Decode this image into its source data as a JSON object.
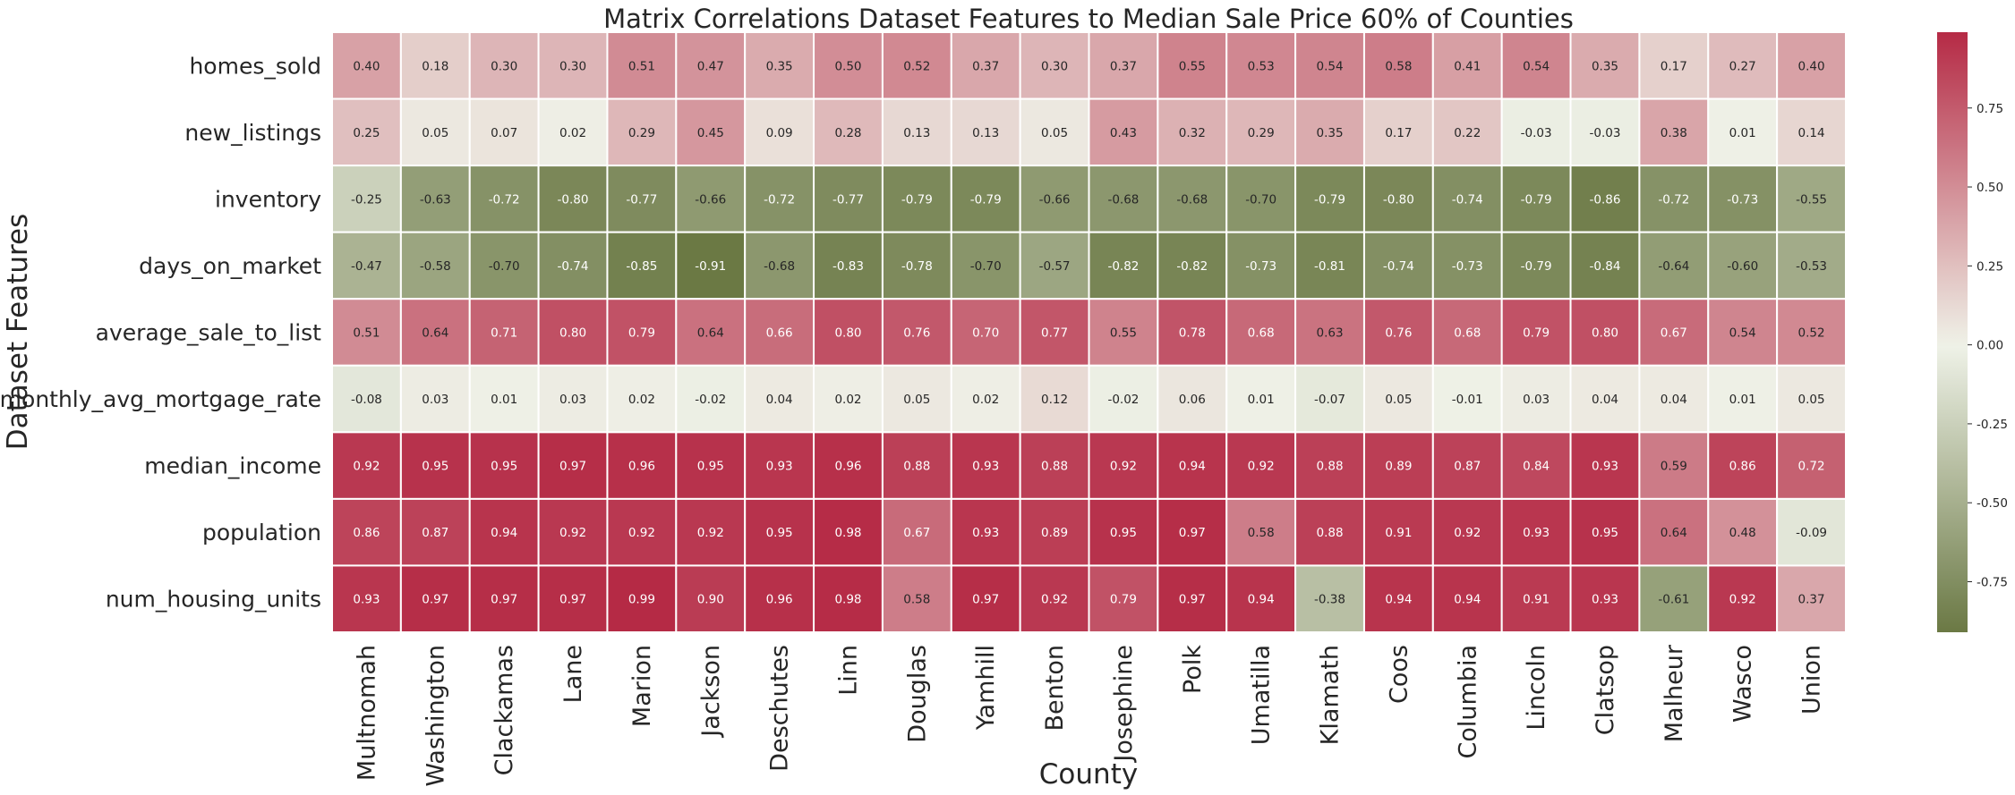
{
  "chart_data": {
    "type": "heatmap",
    "title": "Matrix Correlations Dataset Features to Median Sale Price 60% of Counties",
    "xlabel": "County",
    "ylabel": "Dataset Features",
    "columns": [
      "Multnomah",
      "Washington",
      "Clackamas",
      "Lane",
      "Marion",
      "Jackson",
      "Deschutes",
      "Linn",
      "Douglas",
      "Yamhill",
      "Benton",
      "Josephine",
      "Polk",
      "Umatilla",
      "Klamath",
      "Coos",
      "Columbia",
      "Lincoln",
      "Clatsop",
      "Malheur",
      "Wasco",
      "Union"
    ],
    "rows": [
      "homes_sold",
      "new_listings",
      "inventory",
      "days_on_market",
      "average_sale_to_list",
      "monthly_avg_mortgage_rate",
      "median_income",
      "population",
      "num_housing_units"
    ],
    "values": [
      [
        0.4,
        0.18,
        0.3,
        0.3,
        0.51,
        0.47,
        0.35,
        0.5,
        0.52,
        0.37,
        0.3,
        0.37,
        0.55,
        0.53,
        0.54,
        0.58,
        0.41,
        0.54,
        0.35,
        0.17,
        0.27,
        0.4
      ],
      [
        0.25,
        0.05,
        0.07,
        0.02,
        0.29,
        0.45,
        0.09,
        0.28,
        0.13,
        0.13,
        0.05,
        0.43,
        0.32,
        0.29,
        0.35,
        0.17,
        0.22,
        -0.03,
        -0.03,
        0.38,
        0.01,
        0.14
      ],
      [
        -0.25,
        -0.63,
        -0.72,
        -0.8,
        -0.77,
        -0.66,
        -0.72,
        -0.77,
        -0.79,
        -0.79,
        -0.66,
        -0.68,
        -0.68,
        -0.7,
        -0.79,
        -0.8,
        -0.74,
        -0.79,
        -0.86,
        -0.72,
        -0.73,
        -0.55
      ],
      [
        -0.47,
        -0.58,
        -0.7,
        -0.74,
        -0.85,
        -0.91,
        -0.68,
        -0.83,
        -0.78,
        -0.7,
        -0.57,
        -0.82,
        -0.82,
        -0.73,
        -0.81,
        -0.74,
        -0.73,
        -0.79,
        -0.84,
        -0.64,
        -0.6,
        -0.53
      ],
      [
        0.51,
        0.64,
        0.71,
        0.8,
        0.79,
        0.64,
        0.66,
        0.8,
        0.76,
        0.7,
        0.77,
        0.55,
        0.78,
        0.68,
        0.63,
        0.76,
        0.68,
        0.79,
        0.8,
        0.67,
        0.54,
        0.52
      ],
      [
        -0.08,
        0.03,
        0.01,
        0.03,
        0.02,
        -0.02,
        0.04,
        0.02,
        0.05,
        0.02,
        0.12,
        -0.02,
        0.06,
        0.01,
        -0.07,
        0.05,
        -0.01,
        0.03,
        0.04,
        0.04,
        0.01,
        0.05
      ],
      [
        0.92,
        0.95,
        0.95,
        0.97,
        0.96,
        0.95,
        0.93,
        0.96,
        0.88,
        0.93,
        0.88,
        0.92,
        0.94,
        0.92,
        0.88,
        0.89,
        0.87,
        0.84,
        0.93,
        0.59,
        0.86,
        0.72
      ],
      [
        0.86,
        0.87,
        0.94,
        0.92,
        0.92,
        0.92,
        0.95,
        0.98,
        0.67,
        0.93,
        0.89,
        0.95,
        0.97,
        0.58,
        0.88,
        0.91,
        0.92,
        0.93,
        0.95,
        0.64,
        0.48,
        -0.09
      ],
      [
        0.93,
        0.97,
        0.97,
        0.97,
        0.99,
        0.9,
        0.96,
        0.98,
        0.58,
        0.97,
        0.92,
        0.79,
        0.97,
        0.94,
        -0.38,
        0.94,
        0.94,
        0.91,
        0.93,
        -0.61,
        0.92,
        0.37
      ]
    ],
    "value_format": "2 decimals",
    "vmin": -0.91,
    "vmax": 0.99,
    "colorbar_ticks": [
      -0.75,
      -0.5,
      -0.25,
      0.0,
      0.25,
      0.5,
      0.75
    ],
    "colorbar_tick_labels": [
      "-0.75",
      "-0.50",
      "-0.25",
      "0.00",
      "0.25",
      "0.50",
      "0.75"
    ],
    "colormap": {
      "negative": "#5f6e36",
      "center": "#eff2e8",
      "positive": "#b52a45"
    },
    "legend": "colorbar-right"
  }
}
